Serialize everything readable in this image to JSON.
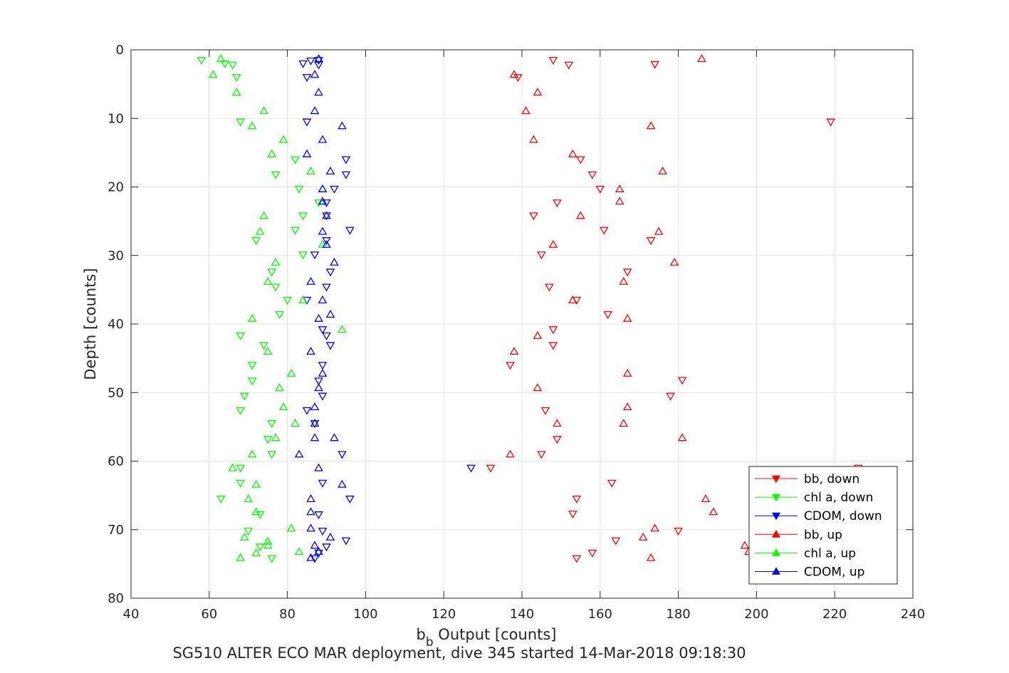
{
  "chart_data": {
    "type": "scatter",
    "title": "",
    "caption": "SG510 ALTER ECO MAR deployment, dive 345 started 14-Mar-2018 09:18:30",
    "xlabel": {
      "main": "b",
      "sub": "b",
      "rest": " Output [counts]"
    },
    "ylabel": "Depth [counts]",
    "xlim": [
      40,
      240
    ],
    "ylim": [
      0,
      80
    ],
    "y_reversed": true,
    "grid": true,
    "legend_position": "bottom-right",
    "x_ticks": [
      40,
      60,
      80,
      100,
      120,
      140,
      160,
      180,
      200,
      220,
      240
    ],
    "y_ticks": [
      0,
      10,
      20,
      30,
      40,
      50,
      60,
      70,
      80
    ],
    "series": [
      {
        "name": "bb, down",
        "color": "#ff0000",
        "marker": "triangle-down",
        "points": [
          [
            148,
            1.5
          ],
          [
            174,
            2.1
          ],
          [
            152,
            2.2
          ],
          [
            139,
            4.0
          ],
          [
            219,
            10.5
          ],
          [
            155,
            16.0
          ],
          [
            158,
            18.2
          ],
          [
            160,
            20.3
          ],
          [
            149,
            22.3
          ],
          [
            143,
            24.2
          ],
          [
            161,
            26.3
          ],
          [
            173,
            27.8
          ],
          [
            145,
            29.9
          ],
          [
            167,
            32.4
          ],
          [
            147,
            34.6
          ],
          [
            154,
            36.5
          ],
          [
            162,
            38.6
          ],
          [
            148,
            40.8
          ],
          [
            148,
            43.1
          ],
          [
            137,
            46.0
          ],
          [
            181,
            48.2
          ],
          [
            178,
            50.5
          ],
          [
            146,
            52.6
          ],
          [
            149,
            56.8
          ],
          [
            145,
            59.0
          ],
          [
            132,
            61.0
          ],
          [
            226,
            61.0
          ],
          [
            163,
            63.2
          ],
          [
            154,
            65.5
          ],
          [
            153,
            67.7
          ],
          [
            180,
            70.2
          ],
          [
            164,
            71.6
          ],
          [
            158,
            73.4
          ],
          [
            154,
            74.2
          ]
        ]
      },
      {
        "name": "chl a, down",
        "color": "#00ff00",
        "marker": "triangle-down",
        "points": [
          [
            58,
            1.5
          ],
          [
            64,
            2.0
          ],
          [
            66,
            2.2
          ],
          [
            67,
            4.0
          ],
          [
            68,
            10.5
          ],
          [
            82,
            16.0
          ],
          [
            77,
            18.2
          ],
          [
            83,
            20.3
          ],
          [
            88,
            22.3
          ],
          [
            84,
            24.2
          ],
          [
            82,
            26.3
          ],
          [
            72,
            27.8
          ],
          [
            84,
            29.9
          ],
          [
            76,
            32.4
          ],
          [
            77,
            34.6
          ],
          [
            80,
            36.5
          ],
          [
            78,
            38.6
          ],
          [
            68,
            41.7
          ],
          [
            74,
            43.1
          ],
          [
            71,
            46.0
          ],
          [
            71,
            48.3
          ],
          [
            69,
            50.5
          ],
          [
            68,
            52.6
          ],
          [
            76,
            54.5
          ],
          [
            75,
            56.8
          ],
          [
            76,
            59.0
          ],
          [
            68,
            61.0
          ],
          [
            68,
            63.2
          ],
          [
            63,
            65.5
          ],
          [
            73,
            67.8
          ],
          [
            70,
            70.2
          ],
          [
            73,
            72.5
          ],
          [
            76,
            74.2
          ]
        ]
      },
      {
        "name": "CDOM, down",
        "color": "#0000ff",
        "marker": "triangle-down",
        "points": [
          [
            88,
            1.5
          ],
          [
            86,
            1.6
          ],
          [
            84,
            2.0
          ],
          [
            88,
            2.2
          ],
          [
            85,
            4.0
          ],
          [
            85,
            10.5
          ],
          [
            95,
            16.0
          ],
          [
            95,
            18.2
          ],
          [
            92,
            20.3
          ],
          [
            90,
            22.3
          ],
          [
            90,
            24.2
          ],
          [
            96,
            26.3
          ],
          [
            90,
            27.8
          ],
          [
            87,
            29.9
          ],
          [
            91,
            32.4
          ],
          [
            90,
            34.6
          ],
          [
            85,
            36.5
          ],
          [
            89,
            40.8
          ],
          [
            90,
            41.7
          ],
          [
            91,
            43.1
          ],
          [
            89,
            46.0
          ],
          [
            88,
            48.3
          ],
          [
            89,
            50.5
          ],
          [
            85,
            52.6
          ],
          [
            87,
            54.5
          ],
          [
            94,
            59.0
          ],
          [
            127,
            61.0
          ],
          [
            89,
            63.2
          ],
          [
            96,
            65.5
          ],
          [
            88,
            67.8
          ],
          [
            89,
            70.2
          ],
          [
            95,
            71.6
          ],
          [
            90,
            72.5
          ],
          [
            88,
            73.4
          ],
          [
            87,
            74.2
          ]
        ]
      },
      {
        "name": "bb, up",
        "color": "#ff0000",
        "marker": "triangle-up",
        "points": [
          [
            186,
            1.3
          ],
          [
            138,
            3.6
          ],
          [
            144,
            6.2
          ],
          [
            141,
            8.9
          ],
          [
            173,
            11.1
          ],
          [
            143,
            13.1
          ],
          [
            153,
            15.2
          ],
          [
            176,
            17.7
          ],
          [
            165,
            20.3
          ],
          [
            165,
            22.1
          ],
          [
            155,
            24.2
          ],
          [
            175,
            26.5
          ],
          [
            148,
            28.4
          ],
          [
            179,
            31.0
          ],
          [
            166,
            33.8
          ],
          [
            153,
            36.5
          ],
          [
            167,
            39.2
          ],
          [
            144,
            41.7
          ],
          [
            138,
            44.0
          ],
          [
            167,
            47.2
          ],
          [
            144,
            49.3
          ],
          [
            167,
            52.1
          ],
          [
            149,
            54.5
          ],
          [
            166,
            54.5
          ],
          [
            181,
            56.6
          ],
          [
            137,
            59.0
          ],
          [
            187,
            65.5
          ],
          [
            189,
            67.4
          ],
          [
            174,
            69.8
          ],
          [
            171,
            71.1
          ],
          [
            197,
            72.3
          ],
          [
            198,
            73.2
          ],
          [
            173,
            74.1
          ]
        ]
      },
      {
        "name": "chl a, up",
        "color": "#00ff00",
        "marker": "triangle-up",
        "points": [
          [
            63,
            1.3
          ],
          [
            61,
            3.6
          ],
          [
            67,
            6.2
          ],
          [
            74,
            8.9
          ],
          [
            71,
            11.1
          ],
          [
            79,
            13.1
          ],
          [
            76,
            15.2
          ],
          [
            86,
            17.7
          ],
          [
            89,
            20.3
          ],
          [
            89,
            22.1
          ],
          [
            74,
            24.2
          ],
          [
            73,
            26.5
          ],
          [
            89,
            28.4
          ],
          [
            77,
            31.0
          ],
          [
            75,
            33.8
          ],
          [
            84,
            36.5
          ],
          [
            71,
            39.2
          ],
          [
            94,
            40.8
          ],
          [
            75,
            44.0
          ],
          [
            81,
            47.2
          ],
          [
            78,
            49.3
          ],
          [
            79,
            52.1
          ],
          [
            82,
            54.5
          ],
          [
            77,
            56.6
          ],
          [
            71,
            59.0
          ],
          [
            66,
            61.0
          ],
          [
            72,
            63.4
          ],
          [
            70,
            65.5
          ],
          [
            72,
            67.4
          ],
          [
            81,
            69.8
          ],
          [
            69,
            71.1
          ],
          [
            75,
            71.7
          ],
          [
            75,
            72.3
          ],
          [
            83,
            73.2
          ],
          [
            72,
            73.4
          ],
          [
            68,
            74.1
          ]
        ]
      },
      {
        "name": "CDOM, up",
        "color": "#0000ff",
        "marker": "triangle-up",
        "points": [
          [
            88,
            1.3
          ],
          [
            87,
            3.6
          ],
          [
            88,
            6.2
          ],
          [
            87,
            8.9
          ],
          [
            94,
            11.1
          ],
          [
            89,
            13.1
          ],
          [
            85,
            15.2
          ],
          [
            91,
            17.7
          ],
          [
            89,
            20.3
          ],
          [
            89,
            22.1
          ],
          [
            90,
            24.2
          ],
          [
            89,
            26.5
          ],
          [
            90,
            28.4
          ],
          [
            92,
            31.0
          ],
          [
            86,
            33.8
          ],
          [
            89,
            36.5
          ],
          [
            88,
            39.2
          ],
          [
            91,
            38.6
          ],
          [
            86,
            44.0
          ],
          [
            89,
            47.2
          ],
          [
            88,
            49.3
          ],
          [
            87,
            52.1
          ],
          [
            87,
            54.5
          ],
          [
            92,
            56.6
          ],
          [
            87,
            56.6
          ],
          [
            83,
            59.0
          ],
          [
            88,
            61.0
          ],
          [
            94,
            63.4
          ],
          [
            86,
            65.5
          ],
          [
            86,
            67.4
          ],
          [
            86,
            69.8
          ],
          [
            91,
            71.1
          ],
          [
            87,
            72.3
          ],
          [
            88,
            73.2
          ],
          [
            86,
            74.1
          ]
        ]
      }
    ]
  }
}
